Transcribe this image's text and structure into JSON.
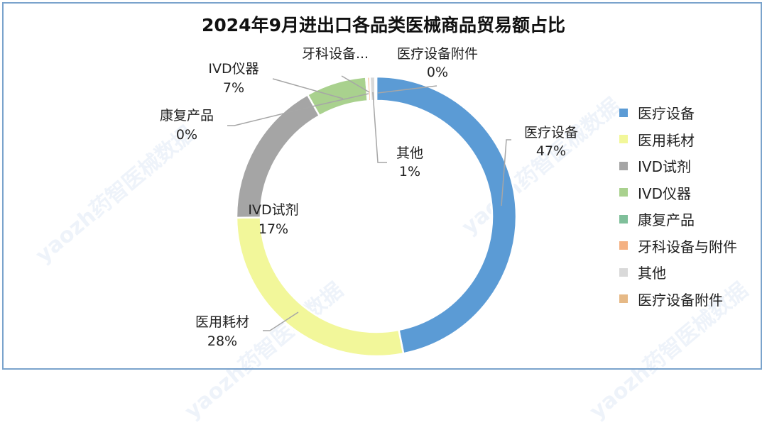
{
  "chart_data": {
    "type": "pie",
    "variant": "donut",
    "title": "2024年9月进出口各品类医械商品贸易额占比",
    "start_angle_deg": 0,
    "direction": "clockwise",
    "legend_position": "right",
    "slices": [
      {
        "name": "医疗设备",
        "value": 47,
        "label_name": "医疗设备",
        "label_value": "47%",
        "color": "#5b9bd5"
      },
      {
        "name": "医用耗材",
        "value": 28,
        "label_name": "医用耗材",
        "label_value": "28%",
        "color": "#f2f79a"
      },
      {
        "name": "IVD试剂",
        "value": 17,
        "label_name": "IVD试剂",
        "label_value": "17%",
        "color": "#a5a5a5"
      },
      {
        "name": "IVD仪器",
        "value": 7,
        "label_name": "IVD仪器",
        "label_value": "7%",
        "color": "#a9d18e"
      },
      {
        "name": "康复产品",
        "value": 0.15,
        "label_name": "康复产品",
        "label_value": "0%",
        "color": "#7fbf9a"
      },
      {
        "name": "牙科设备与附件",
        "value": 0.3,
        "label_name": "牙科设备...",
        "label_value": "",
        "color": "#f4b183"
      },
      {
        "name": "其他",
        "value": 0.6,
        "label_name": "其他",
        "label_value": "1%",
        "color": "#d9d9d9"
      },
      {
        "name": "医疗设备附件",
        "value": 0.15,
        "label_name": "医疗设备附件",
        "label_value": "0%",
        "color": "#e6b986"
      }
    ]
  },
  "watermark": "yaozh药智医械数据"
}
